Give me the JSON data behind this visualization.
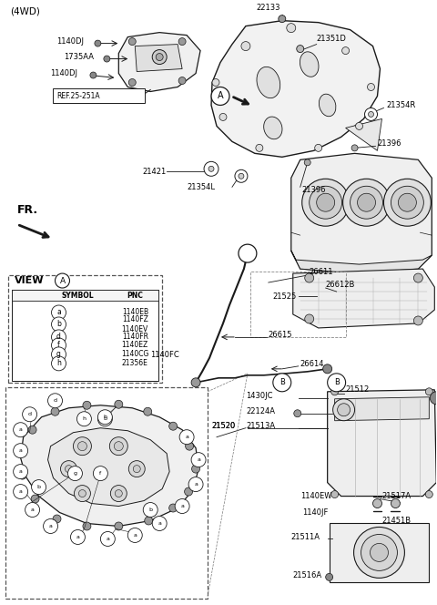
{
  "bg_color": "#ffffff",
  "line_color": "#1a1a1a",
  "fig_width": 4.8,
  "fig_height": 6.64,
  "dpi": 100,
  "title": "(4WD)",
  "view_table": {
    "rows": [
      [
        "a",
        "1140EB"
      ],
      [
        "b",
        "1140FZ\n1140EV"
      ],
      [
        "d",
        "1140FR"
      ],
      [
        "f",
        "1140EZ"
      ],
      [
        "g",
        "1140CG"
      ],
      [
        "h",
        "21356E"
      ]
    ]
  }
}
